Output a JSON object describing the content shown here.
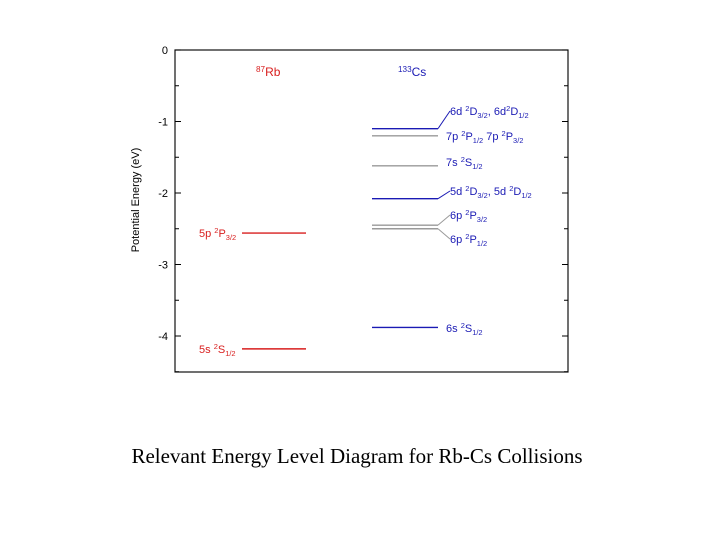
{
  "caption": "Relevant Energy Level Diagram for Rb-Cs Collisions",
  "colors": {
    "rb": "#d81e1e",
    "cs": "#1a1ab4",
    "cs_grey": "#9a9a9a",
    "axis": "#000000",
    "frame": "#111111"
  },
  "chart_data": {
    "type": "energy-level",
    "ylabel": "Potential Energy (eV)",
    "ylim": [
      -4.5,
      0
    ],
    "yticks": [
      0,
      -1,
      -2,
      -3,
      -4
    ],
    "ytick_labels": [
      "0",
      "-1",
      "-2",
      "-3",
      "-4"
    ],
    "grid": false,
    "columns": [
      {
        "id": "rb",
        "label": {
          "sup": "87",
          "base": "Rb"
        },
        "color_key": "rb",
        "levels": [
          {
            "energy": -2.56,
            "label": [
              {
                "t": "5p "
              },
              {
                "sup": "2"
              },
              {
                "t": "P"
              },
              {
                "sub": "3/2"
              }
            ]
          },
          {
            "energy": -4.18,
            "label": [
              {
                "t": "5s "
              },
              {
                "sup": "2"
              },
              {
                "t": "S"
              },
              {
                "sub": "1/2"
              }
            ]
          }
        ]
      },
      {
        "id": "cs",
        "label": {
          "sup": "133",
          "base": "Cs"
        },
        "color_key": "cs",
        "levels": [
          {
            "energy": -1.1,
            "color_key": "cs",
            "label": [
              {
                "t": "6d "
              },
              {
                "sup": "2"
              },
              {
                "t": "D"
              },
              {
                "sub": "3/2"
              },
              {
                "t": ", 6d"
              },
              {
                "sup": "2"
              },
              {
                "t": "D"
              },
              {
                "sub": "1/2"
              }
            ]
          },
          {
            "energy": -1.2,
            "color_key": "cs_grey",
            "label": [
              {
                "t": "7p "
              },
              {
                "sup": "2"
              },
              {
                "t": "P"
              },
              {
                "sub": "1/2"
              },
              {
                "t": " 7p "
              },
              {
                "sup": "2"
              },
              {
                "t": "P"
              },
              {
                "sub": "3/2"
              }
            ]
          },
          {
            "energy": -1.62,
            "color_key": "cs_grey",
            "label": [
              {
                "t": "7s "
              },
              {
                "sup": "2"
              },
              {
                "t": "S"
              },
              {
                "sub": "1/2"
              }
            ]
          },
          {
            "energy": -2.08,
            "color_key": "cs",
            "label": [
              {
                "t": "5d "
              },
              {
                "sup": "2"
              },
              {
                "t": "D"
              },
              {
                "sub": "3/2"
              },
              {
                "t": ", 5d "
              },
              {
                "sup": "2"
              },
              {
                "t": "D"
              },
              {
                "sub": "1/2"
              }
            ]
          },
          {
            "energy": -2.45,
            "color_key": "cs_grey",
            "label": [
              {
                "t": "6p "
              },
              {
                "sup": "2"
              },
              {
                "t": "P"
              },
              {
                "sub": "3/2"
              }
            ]
          },
          {
            "energy": -2.5,
            "color_key": "cs_grey",
            "label": [
              {
                "t": "6p "
              },
              {
                "sup": "2"
              },
              {
                "t": "P"
              },
              {
                "sub": "1/2"
              }
            ]
          },
          {
            "energy": -3.88,
            "color_key": "cs",
            "label": [
              {
                "t": "6s "
              },
              {
                "sup": "2"
              },
              {
                "t": "S"
              },
              {
                "sub": "1/2"
              }
            ]
          }
        ]
      }
    ]
  }
}
